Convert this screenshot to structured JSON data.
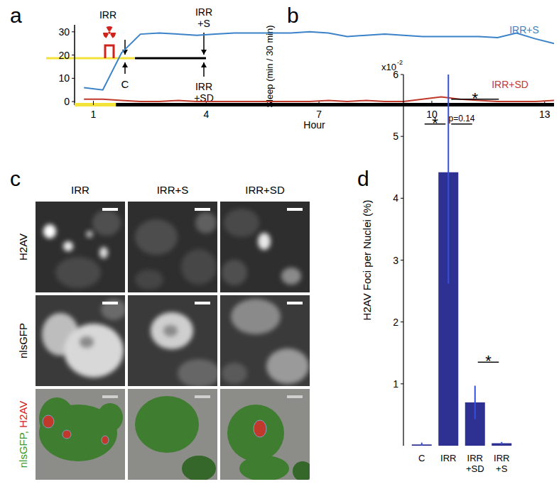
{
  "panel_labels": [
    "a",
    "b",
    "c",
    "d"
  ],
  "diagram": {
    "irradiation_label": "IRR",
    "control_label": "C",
    "end_top_label": [
      "IRR",
      "+S"
    ],
    "end_bottom_label": [
      "IRR",
      "+SD"
    ]
  },
  "images": {
    "columns": [
      "IRR",
      "IRR+S",
      "IRR+SD"
    ],
    "rows": [
      "H2AV",
      "nlsGFP"
    ],
    "merge_row": [
      {
        "text": "nlsGFP,",
        "color": "#2e9a2e"
      },
      {
        "text": "H2AV",
        "color": "#d0231c"
      }
    ]
  },
  "chart_data": [
    {
      "type": "line",
      "x_label": "Hour",
      "y_label": "Sleep (min / 30 min)",
      "x": [
        0.75,
        1.25,
        1.75,
        2.25,
        2.75,
        3.25,
        3.75,
        4.25,
        4.75,
        5.25,
        5.75,
        6.25,
        6.75,
        7.25,
        7.75,
        8.25,
        8.75,
        9.25,
        9.75,
        10.25,
        10.75,
        11.25,
        11.75,
        12.25,
        12.75,
        13.25
      ],
      "series": [
        {
          "name": "IRR+S",
          "color": "#3b82c8",
          "values": [
            6,
            5,
            21,
            29,
            29.5,
            29,
            28.5,
            29,
            29.5,
            29.5,
            29.5,
            29.5,
            30,
            29.5,
            28,
            28.5,
            29,
            28.5,
            28,
            28,
            28,
            28,
            27.5,
            29.5,
            27,
            25
          ]
        },
        {
          "name": "IRR+SD",
          "color": "#c0392b",
          "values": [
            1,
            1,
            0.5,
            0,
            0,
            0.5,
            0,
            0,
            0,
            0,
            0,
            0,
            0,
            0.5,
            0,
            0.5,
            0,
            0,
            1,
            2,
            1,
            0.5,
            0,
            0,
            0,
            0.5
          ]
        }
      ],
      "xlim": [
        0.5,
        13.25
      ],
      "xticks": [
        1,
        4,
        7,
        10,
        13
      ],
      "ylim": [
        -1.5,
        33
      ],
      "yticks": [
        0,
        10,
        20,
        30
      ],
      "light_period": [
        0.5,
        1.6
      ]
    },
    {
      "type": "bar",
      "y_label": "H2AV Foci per Nuclei (%)",
      "y_multiplier": {
        "base": "x10",
        "exponent": "-2"
      },
      "categories": [
        "C",
        "IRR",
        "IRR+SD",
        "IRR+S"
      ],
      "values": [
        0.02,
        4.42,
        0.7,
        0.04
      ],
      "errors": [
        0.03,
        1.8,
        0.27,
        0.02
      ],
      "color": "#2e3192",
      "ylim": [
        0,
        6
      ],
      "yticks": [
        1,
        2,
        3,
        4,
        5,
        6
      ],
      "annotations": [
        {
          "from": 0,
          "to": 1,
          "text": "*"
        },
        {
          "from": 1,
          "to": 2,
          "text": "p=0.14"
        },
        {
          "from": 1,
          "to": 3,
          "text": "*"
        },
        {
          "from": 2,
          "to": 3,
          "text": "*"
        }
      ]
    }
  ]
}
